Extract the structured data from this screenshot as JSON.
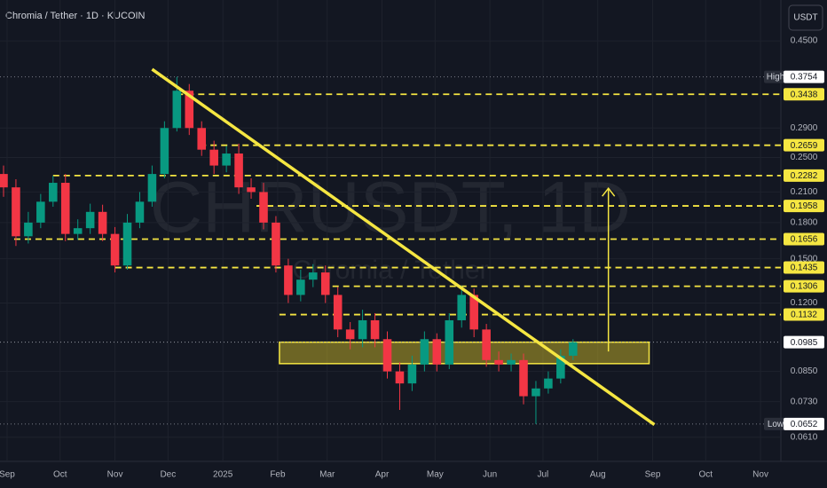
{
  "chart_data": {
    "type": "candlestick",
    "title": "Chromia / Tether · 1D · KUCOIN",
    "currency": "USDT",
    "watermark": "CHRUSDT, 1D",
    "watermark_sub": "Chromia / Tether",
    "log_scale": true,
    "grid": true,
    "xlim": [
      -4,
      437.5
    ],
    "xticks": [
      {
        "value": 0,
        "label": "Sep"
      },
      {
        "value": 30,
        "label": "Oct"
      },
      {
        "value": 61,
        "label": "Nov"
      },
      {
        "value": 91,
        "label": "Dec"
      },
      {
        "value": 122,
        "label": "2025"
      },
      {
        "value": 153,
        "label": "Feb"
      },
      {
        "value": 181,
        "label": "Mar"
      },
      {
        "value": 212,
        "label": "Apr"
      },
      {
        "value": 242,
        "label": "May"
      },
      {
        "value": 273,
        "label": "Jun"
      },
      {
        "value": 303,
        "label": "Jul"
      },
      {
        "value": 334,
        "label": "Aug"
      },
      {
        "value": 365,
        "label": "Sep"
      },
      {
        "value": 395,
        "label": "Oct"
      },
      {
        "value": 426,
        "label": "Nov"
      }
    ],
    "ylim": [
      0.054,
      0.553
    ],
    "yticks": [
      {
        "value": 0.45,
        "label": "0.4500"
      },
      {
        "value": 0.29,
        "label": "0.2900"
      },
      {
        "value": 0.25,
        "label": "0.2500"
      },
      {
        "value": 0.21,
        "label": "0.2100"
      },
      {
        "value": 0.18,
        "label": "0.1800"
      },
      {
        "value": 0.15,
        "label": "0.1500"
      },
      {
        "value": 0.12,
        "label": "0.1200"
      },
      {
        "value": 0.085,
        "label": "0.0850"
      },
      {
        "value": 0.073,
        "label": "0.0730"
      },
      {
        "value": 0.061,
        "label": "0.0610"
      }
    ],
    "x": [
      -2,
      5,
      12,
      19,
      26,
      33,
      40,
      47,
      54,
      61,
      68,
      75,
      82,
      89,
      96,
      103,
      110,
      117,
      124,
      131,
      138,
      145,
      152,
      159,
      166,
      173,
      180,
      187,
      194,
      201,
      208,
      215,
      222,
      229,
      236,
      243,
      250,
      257,
      264,
      271,
      278,
      285,
      292,
      299,
      306,
      313,
      320
    ],
    "open": [
      0.23,
      0.215,
      0.168,
      0.18,
      0.2,
      0.22,
      0.17,
      0.175,
      0.19,
      0.17,
      0.145,
      0.18,
      0.2,
      0.23,
      0.29,
      0.35,
      0.29,
      0.26,
      0.24,
      0.255,
      0.215,
      0.21,
      0.18,
      0.145,
      0.125,
      0.135,
      0.14,
      0.125,
      0.105,
      0.1,
      0.11,
      0.1,
      0.085,
      0.08,
      0.088,
      0.1,
      0.088,
      0.11,
      0.125,
      0.105,
      0.09,
      0.088,
      0.09,
      0.075,
      0.078,
      0.082,
      0.092
    ],
    "high": [
      0.24,
      0.224,
      0.19,
      0.208,
      0.228,
      0.23,
      0.183,
      0.198,
      0.197,
      0.176,
      0.188,
      0.21,
      0.24,
      0.3,
      0.3754,
      0.362,
      0.3,
      0.272,
      0.265,
      0.268,
      0.225,
      0.22,
      0.186,
      0.15,
      0.142,
      0.146,
      0.145,
      0.13,
      0.109,
      0.116,
      0.114,
      0.104,
      0.089,
      0.092,
      0.104,
      0.103,
      0.114,
      0.131,
      0.129,
      0.108,
      0.094,
      0.093,
      0.093,
      0.081,
      0.085,
      0.095,
      0.1
    ],
    "low": [
      0.205,
      0.16,
      0.162,
      0.175,
      0.195,
      0.164,
      0.165,
      0.17,
      0.164,
      0.14,
      0.142,
      0.175,
      0.195,
      0.225,
      0.285,
      0.28,
      0.252,
      0.23,
      0.232,
      0.208,
      0.203,
      0.174,
      0.14,
      0.12,
      0.121,
      0.13,
      0.12,
      0.101,
      0.095,
      0.096,
      0.096,
      0.082,
      0.07,
      0.077,
      0.085,
      0.085,
      0.086,
      0.106,
      0.101,
      0.087,
      0.085,
      0.085,
      0.072,
      0.0652,
      0.076,
      0.08,
      0.09
    ],
    "close": [
      0.215,
      0.168,
      0.18,
      0.2,
      0.22,
      0.17,
      0.175,
      0.19,
      0.17,
      0.145,
      0.18,
      0.2,
      0.23,
      0.29,
      0.35,
      0.29,
      0.26,
      0.24,
      0.255,
      0.215,
      0.21,
      0.18,
      0.145,
      0.125,
      0.135,
      0.14,
      0.125,
      0.105,
      0.1,
      0.11,
      0.1,
      0.085,
      0.08,
      0.088,
      0.1,
      0.088,
      0.11,
      0.125,
      0.105,
      0.09,
      0.088,
      0.09,
      0.075,
      0.078,
      0.082,
      0.092,
      0.0985
    ],
    "up_color": "#089981",
    "down_color": "#f23645",
    "level_color": "#f5e642",
    "levels": [
      {
        "value": 0.3438,
        "start": 96
      },
      {
        "value": 0.2659,
        "start": 109
      },
      {
        "value": 0.2282,
        "start": 26
      },
      {
        "value": 0.1958,
        "start": 141
      },
      {
        "value": 0.1656,
        "start": 4
      },
      {
        "value": 0.1435,
        "start": 61
      },
      {
        "value": 0.1306,
        "start": 184
      },
      {
        "value": 0.1132,
        "start": 154
      }
    ],
    "high_mark": {
      "text": "High",
      "value": 0.3754
    },
    "low_mark": {
      "text": "Low",
      "value": 0.0652
    },
    "last": {
      "value": 0.0985
    },
    "trendline": {
      "x": [
        82,
        366
      ],
      "y": [
        0.39,
        0.065
      ]
    },
    "zone": {
      "x": [
        154,
        363
      ],
      "y": [
        0.0884,
        0.0985
      ]
    },
    "arrow": {
      "x": 340,
      "y": [
        0.094,
        0.214
      ]
    }
  }
}
